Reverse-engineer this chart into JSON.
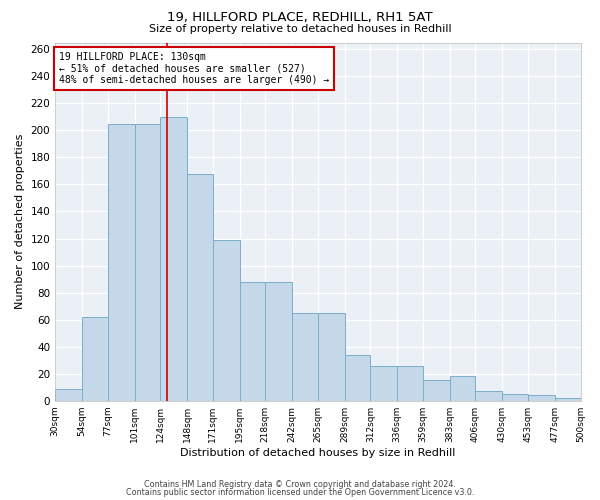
{
  "title1": "19, HILLFORD PLACE, REDHILL, RH1 5AT",
  "title2": "Size of property relative to detached houses in Redhill",
  "xlabel": "Distribution of detached houses by size in Redhill",
  "ylabel": "Number of detached properties",
  "bar_lefts": [
    30,
    54,
    77,
    101,
    124,
    148,
    171,
    195,
    218,
    242,
    265,
    289,
    312,
    336,
    359,
    383,
    406,
    430,
    453,
    477
  ],
  "bar_rights": [
    54,
    77,
    101,
    124,
    148,
    171,
    195,
    218,
    242,
    265,
    289,
    312,
    336,
    359,
    383,
    406,
    430,
    453,
    477,
    500
  ],
  "bar_heights": [
    9,
    62,
    205,
    205,
    210,
    168,
    119,
    88,
    88,
    65,
    65,
    34,
    26,
    26,
    15,
    18,
    7,
    5,
    4,
    2
  ],
  "bar_color": "#c5d8ea",
  "bar_edgecolor": "#7aaec8",
  "bar_linewidth": 0.7,
  "property_line_x": 130,
  "property_line_color": "#cc0000",
  "annotation_text": "19 HILLFORD PLACE: 130sqm\n← 51% of detached houses are smaller (527)\n48% of semi-detached houses are larger (490) →",
  "annotation_box_color": "#cc0000",
  "xlim": [
    30,
    500
  ],
  "ylim": [
    0,
    265
  ],
  "yticks": [
    0,
    20,
    40,
    60,
    80,
    100,
    120,
    140,
    160,
    180,
    200,
    220,
    240,
    260
  ],
  "xtick_positions": [
    30,
    54,
    77,
    101,
    124,
    148,
    171,
    195,
    218,
    242,
    265,
    289,
    312,
    336,
    359,
    383,
    406,
    430,
    453,
    477,
    500
  ],
  "tick_labels": [
    "30sqm",
    "54sqm",
    "77sqm",
    "101sqm",
    "124sqm",
    "148sqm",
    "171sqm",
    "195sqm",
    "218sqm",
    "242sqm",
    "265sqm",
    "289sqm",
    "312sqm",
    "336sqm",
    "359sqm",
    "383sqm",
    "406sqm",
    "430sqm",
    "453sqm",
    "477sqm",
    "500sqm"
  ],
  "background_color": "#eaf0f6",
  "grid_color": "#ffffff",
  "footnote1": "Contains HM Land Registry data © Crown copyright and database right 2024.",
  "footnote2": "Contains public sector information licensed under the Open Government Licence v3.0."
}
